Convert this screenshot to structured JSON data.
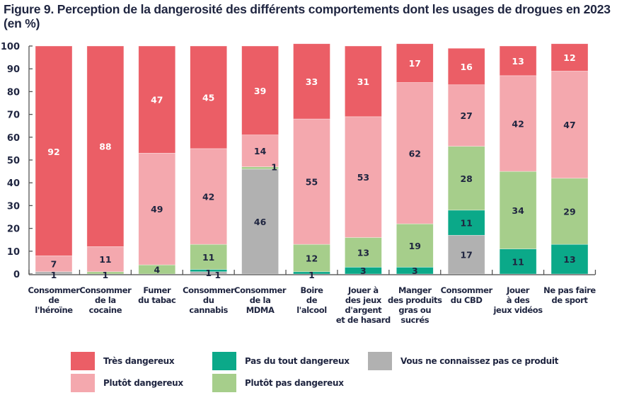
{
  "chart_data": {
    "type": "bar",
    "stacked": true,
    "title": "Figure 9. Perception de la dangerosité des différents comportements dont les usages de drogues en 2023 (en %)",
    "xlabel": "",
    "ylabel": "",
    "ylim": [
      0,
      100
    ],
    "yticks": [
      "0",
      "10",
      "20",
      "30",
      "40",
      "50",
      "60",
      "70",
      "80",
      "90",
      "100"
    ],
    "grid": false,
    "legend_position": "bottom",
    "categories": [
      "Consommer\nde\nl'héroïne",
      "Consommer\nde la\ncocaine",
      "Fumer\ndu tabac",
      "Consommer\ndu\ncannabis",
      "Consommer\nde la\nMDMA",
      "Boire\nde\nl'alcool",
      "Jouer à\ndes jeux\nd'argent\net de hasard",
      "Manger\ndes produits\ngras ou\nsucrés",
      "Consommer\ndu CBD",
      "Jouer\nà des\njeux vidéos",
      "Ne pas faire\nde sport"
    ],
    "stack_order_bottom_to_top": [
      "unknown",
      "not_at_all",
      "rather_not",
      "rather",
      "very"
    ],
    "series": [
      {
        "key": "very",
        "name": "Très dangereux",
        "color": "#EB5E66",
        "label_color": "#ffffff",
        "values": [
          92,
          88,
          47,
          45,
          39,
          33,
          31,
          17,
          16,
          13,
          12
        ]
      },
      {
        "key": "rather",
        "name": "Plutôt dangereux",
        "color": "#F4A8AE",
        "label_color": "#1f2540",
        "values": [
          7,
          11,
          49,
          42,
          14,
          55,
          53,
          62,
          27,
          42,
          47
        ]
      },
      {
        "key": "rather_not",
        "name": "Plutôt pas dangereux",
        "color": "#A6CE8B",
        "label_color": "#1f2540",
        "values": [
          0,
          1,
          4,
          11,
          1,
          12,
          13,
          19,
          28,
          34,
          29
        ]
      },
      {
        "key": "not_at_all",
        "name": "Pas du tout dangereux",
        "color": "#0BA989",
        "label_color": "#1f2540",
        "values": [
          0,
          0,
          0,
          1,
          0,
          1,
          3,
          3,
          11,
          11,
          13
        ]
      },
      {
        "key": "unknown",
        "name": "Vous ne connaissez pas ce produit",
        "color": "#B1B1B1",
        "label_color": "#1f2540",
        "values": [
          1,
          0,
          0,
          1,
          46,
          0,
          0,
          0,
          17,
          0,
          0
        ]
      }
    ],
    "legend_order": [
      "very",
      "rather",
      "not_at_all",
      "rather_not",
      "unknown"
    ]
  }
}
